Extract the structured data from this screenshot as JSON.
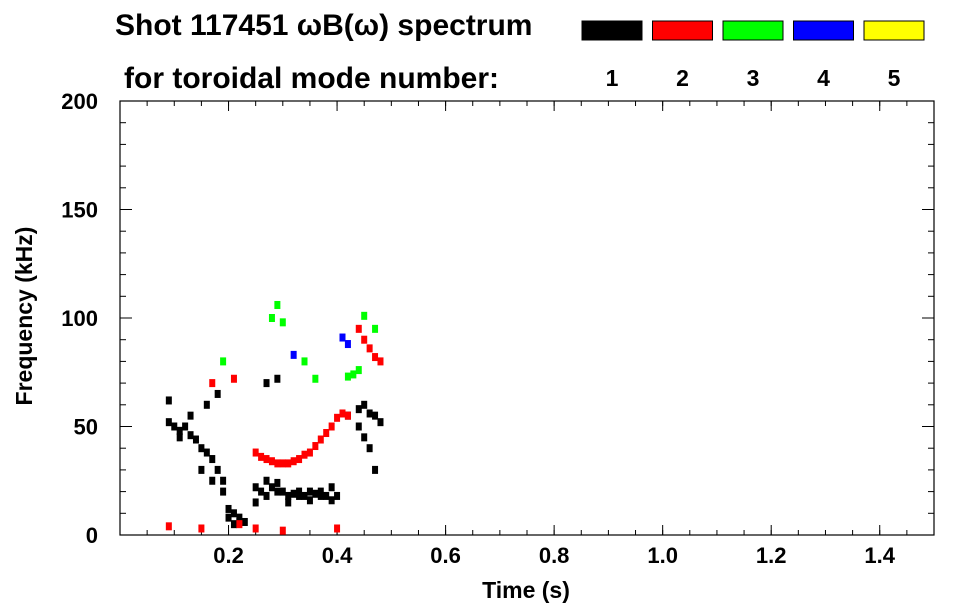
{
  "chart_data": {
    "type": "scatter",
    "title": "Shot 117451 ωB(ω) spectrum",
    "subtitle": "for toroidal mode number:",
    "xlabel": "Time (s)",
    "ylabel": "Frequency (kHz)",
    "xlim": [
      0.0,
      1.5
    ],
    "ylim": [
      0,
      200
    ],
    "x_ticks": [
      {
        "value": 0.2,
        "label": "0.2"
      },
      {
        "value": 0.4,
        "label": "0.4"
      },
      {
        "value": 0.6,
        "label": "0.6"
      },
      {
        "value": 0.8,
        "label": "0.8"
      },
      {
        "value": 1.0,
        "label": "1.0"
      },
      {
        "value": 1.2,
        "label": "1.2"
      },
      {
        "value": 1.4,
        "label": "1.4"
      }
    ],
    "y_ticks": [
      {
        "value": 0,
        "label": "0"
      },
      {
        "value": 50,
        "label": "50"
      },
      {
        "value": 100,
        "label": "100"
      },
      {
        "value": 150,
        "label": "150"
      },
      {
        "value": 200,
        "label": "200"
      }
    ],
    "legend": [
      {
        "label": "1",
        "color": "#000000"
      },
      {
        "label": "2",
        "color": "#ff0000"
      },
      {
        "label": "3",
        "color": "#00ff00"
      },
      {
        "label": "4",
        "color": "#0000ff"
      },
      {
        "label": "5",
        "color": "#ffff00"
      }
    ],
    "legend_placement": "top-right",
    "grid": false,
    "series": [
      {
        "name": "1",
        "color": "#000000",
        "x": [
          0.09,
          0.1,
          0.11,
          0.12,
          0.13,
          0.14,
          0.15,
          0.16,
          0.17,
          0.18,
          0.19,
          0.2,
          0.21,
          0.22,
          0.23,
          0.25,
          0.26,
          0.27,
          0.28,
          0.29,
          0.3,
          0.31,
          0.32,
          0.33,
          0.34,
          0.35,
          0.36,
          0.37,
          0.38,
          0.39,
          0.4,
          0.44,
          0.45,
          0.46,
          0.47,
          0.48,
          0.09,
          0.11,
          0.13,
          0.15,
          0.17,
          0.19,
          0.2,
          0.21,
          0.22,
          0.25,
          0.27,
          0.29,
          0.31,
          0.33,
          0.35,
          0.37,
          0.39,
          0.44,
          0.45,
          0.46,
          0.47,
          0.16,
          0.18,
          0.27,
          0.29,
          0.42
        ],
        "y": [
          52,
          50,
          48,
          50,
          46,
          44,
          40,
          38,
          35,
          30,
          25,
          12,
          10,
          8,
          6,
          22,
          20,
          18,
          22,
          24,
          20,
          18,
          19,
          20,
          18,
          20,
          19,
          18,
          18,
          16,
          18,
          58,
          60,
          56,
          55,
          52,
          62,
          45,
          55,
          30,
          25,
          20,
          8,
          5,
          6,
          15,
          25,
          20,
          15,
          18,
          16,
          20,
          22,
          50,
          45,
          40,
          30,
          60,
          65,
          70,
          72,
          55
        ]
      },
      {
        "name": "2",
        "color": "#ff0000",
        "x": [
          0.25,
          0.26,
          0.27,
          0.28,
          0.29,
          0.3,
          0.31,
          0.32,
          0.33,
          0.34,
          0.35,
          0.36,
          0.37,
          0.38,
          0.39,
          0.4,
          0.41,
          0.42,
          0.44,
          0.45,
          0.46,
          0.47,
          0.48,
          0.09,
          0.15,
          0.22,
          0.25,
          0.3,
          0.4,
          0.17,
          0.21
        ],
        "y": [
          38,
          36,
          35,
          34,
          33,
          33,
          33,
          34,
          35,
          37,
          38,
          41,
          44,
          47,
          50,
          54,
          56,
          55,
          95,
          90,
          86,
          82,
          80,
          4,
          3,
          5,
          3,
          2,
          3,
          70,
          72
        ]
      },
      {
        "name": "3",
        "color": "#00ff00",
        "x": [
          0.42,
          0.43,
          0.44,
          0.45,
          0.28,
          0.29,
          0.3,
          0.34,
          0.36,
          0.19,
          0.47
        ],
        "y": [
          73,
          74,
          76,
          101,
          100,
          106,
          98,
          80,
          72,
          80,
          95
        ]
      },
      {
        "name": "4",
        "color": "#0000ff",
        "x": [
          0.41,
          0.42,
          0.32
        ],
        "y": [
          91,
          88,
          83
        ]
      },
      {
        "name": "5",
        "color": "#ffff00",
        "x": [],
        "y": []
      }
    ]
  }
}
